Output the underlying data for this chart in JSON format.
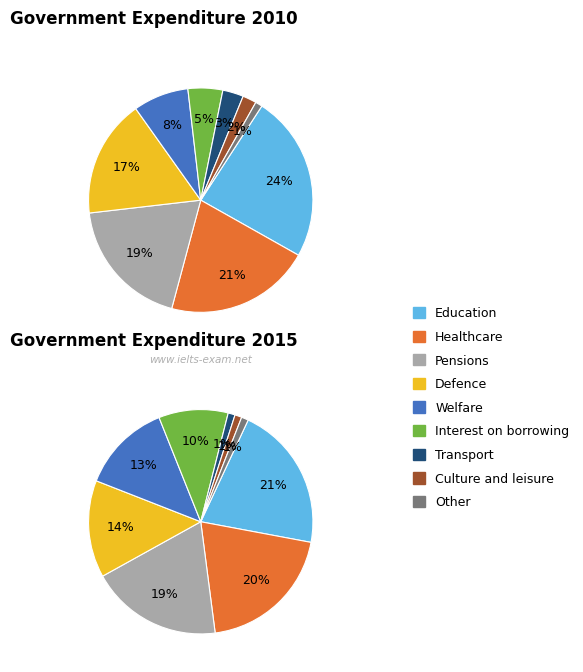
{
  "title1": "Government Expenditure 2010",
  "title2": "Government Expenditure 2015",
  "categories": [
    "Education",
    "Healthcare",
    "Pensions",
    "Defence",
    "Welfare",
    "Interest on borrowing",
    "Transport",
    "Culture and leisure",
    "Other"
  ],
  "colors": [
    "#5bb8e8",
    "#e87030",
    "#a8a8a8",
    "#f0c020",
    "#4472c4",
    "#70b840",
    "#1f4e79",
    "#a0522d",
    "#7a7a7a"
  ],
  "values_2010": [
    24,
    21,
    19,
    17,
    8,
    5,
    3,
    2,
    1
  ],
  "values_2015": [
    21,
    20,
    19,
    14,
    13,
    10,
    1,
    1,
    1
  ],
  "watermark": "www.ielts-exam.net",
  "startangle_2010": 57,
  "startangle_2015": 65
}
